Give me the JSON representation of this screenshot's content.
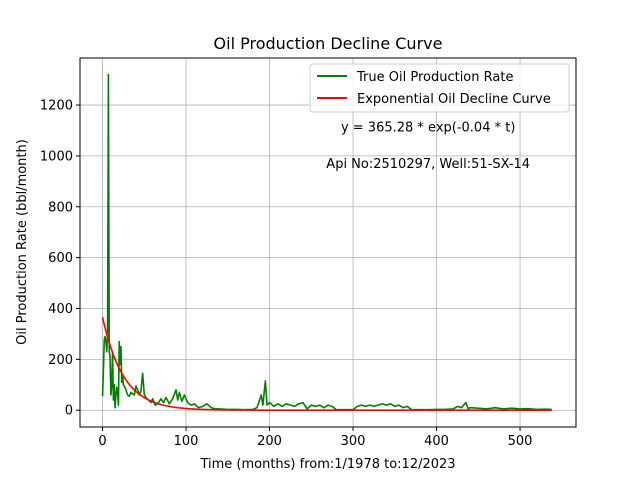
{
  "chart_data": {
    "type": "line",
    "title": "Oil Production Decline Curve",
    "xlabel": "Time (months) from:1/1978 to:12/2023",
    "ylabel": "Oil Production Rate (bbl/month)",
    "xlim": [
      -27,
      567
    ],
    "ylim": [
      -66,
      1385
    ],
    "x_ticks": [
      0,
      100,
      200,
      300,
      400,
      500
    ],
    "y_ticks": [
      0,
      200,
      400,
      600,
      800,
      1000,
      1200
    ],
    "grid": true,
    "legend_position": "top-right",
    "annotations": [
      {
        "text": "y = 365.28 * exp(-0.04 * t)",
        "x": 390,
        "y": 1095
      },
      {
        "text": "Api No:2510297, Well:51-SX-14",
        "x": 390,
        "y": 952
      }
    ],
    "series": [
      {
        "name": "True Oil Production Rate",
        "color": "#008000",
        "points": [
          [
            0,
            55
          ],
          [
            1,
            150
          ],
          [
            2,
            275
          ],
          [
            3,
            290
          ],
          [
            4,
            270
          ],
          [
            5,
            230
          ],
          [
            6,
            300
          ],
          [
            7,
            1320
          ],
          [
            8,
            230
          ],
          [
            9,
            210
          ],
          [
            10,
            60
          ],
          [
            11,
            100
          ],
          [
            12,
            230
          ],
          [
            13,
            40
          ],
          [
            14,
            100
          ],
          [
            15,
            10
          ],
          [
            16,
            60
          ],
          [
            17,
            90
          ],
          [
            18,
            70
          ],
          [
            19,
            20
          ],
          [
            20,
            270
          ],
          [
            21,
            180
          ],
          [
            22,
            250
          ],
          [
            23,
            110
          ],
          [
            24,
            140
          ],
          [
            25,
            100
          ],
          [
            26,
            95
          ],
          [
            28,
            80
          ],
          [
            30,
            60
          ],
          [
            32,
            55
          ],
          [
            34,
            70
          ],
          [
            36,
            65
          ],
          [
            38,
            60
          ],
          [
            40,
            95
          ],
          [
            42,
            80
          ],
          [
            44,
            60
          ],
          [
            46,
            75
          ],
          [
            48,
            145
          ],
          [
            50,
            60
          ],
          [
            52,
            50
          ],
          [
            55,
            40
          ],
          [
            58,
            30
          ],
          [
            60,
            45
          ],
          [
            63,
            20
          ],
          [
            66,
            25
          ],
          [
            70,
            45
          ],
          [
            73,
            30
          ],
          [
            76,
            50
          ],
          [
            80,
            25
          ],
          [
            84,
            45
          ],
          [
            88,
            80
          ],
          [
            90,
            40
          ],
          [
            92,
            70
          ],
          [
            95,
            35
          ],
          [
            98,
            60
          ],
          [
            102,
            30
          ],
          [
            106,
            20
          ],
          [
            110,
            25
          ],
          [
            115,
            10
          ],
          [
            120,
            15
          ],
          [
            125,
            25
          ],
          [
            130,
            10
          ],
          [
            135,
            5
          ],
          [
            140,
            5
          ],
          [
            150,
            3
          ],
          [
            160,
            3
          ],
          [
            170,
            2
          ],
          [
            180,
            3
          ],
          [
            185,
            10
          ],
          [
            190,
            60
          ],
          [
            192,
            20
          ],
          [
            195,
            115
          ],
          [
            197,
            20
          ],
          [
            200,
            30
          ],
          [
            205,
            15
          ],
          [
            210,
            25
          ],
          [
            215,
            15
          ],
          [
            220,
            25
          ],
          [
            225,
            20
          ],
          [
            230,
            15
          ],
          [
            235,
            25
          ],
          [
            240,
            30
          ],
          [
            245,
            5
          ],
          [
            250,
            20
          ],
          [
            255,
            15
          ],
          [
            260,
            20
          ],
          [
            265,
            10
          ],
          [
            270,
            20
          ],
          [
            275,
            15
          ],
          [
            280,
            2
          ],
          [
            290,
            2
          ],
          [
            300,
            2
          ],
          [
            305,
            15
          ],
          [
            310,
            20
          ],
          [
            315,
            15
          ],
          [
            320,
            20
          ],
          [
            325,
            15
          ],
          [
            330,
            20
          ],
          [
            335,
            25
          ],
          [
            340,
            20
          ],
          [
            345,
            25
          ],
          [
            350,
            15
          ],
          [
            355,
            20
          ],
          [
            360,
            10
          ],
          [
            365,
            15
          ],
          [
            370,
            2
          ],
          [
            380,
            2
          ],
          [
            390,
            2
          ],
          [
            400,
            3
          ],
          [
            410,
            3
          ],
          [
            420,
            5
          ],
          [
            425,
            15
          ],
          [
            430,
            10
          ],
          [
            435,
            30
          ],
          [
            438,
            5
          ],
          [
            440,
            10
          ],
          [
            450,
            8
          ],
          [
            460,
            5
          ],
          [
            470,
            10
          ],
          [
            480,
            5
          ],
          [
            490,
            8
          ],
          [
            500,
            5
          ],
          [
            510,
            6
          ],
          [
            520,
            3
          ],
          [
            530,
            4
          ],
          [
            538,
            3
          ]
        ]
      },
      {
        "name": "Exponential Oil Decline Curve",
        "color": "#ff0000",
        "function": {
          "a": 365.28,
          "b": -0.04,
          "x_from": 0,
          "x_to": 538
        }
      }
    ]
  }
}
